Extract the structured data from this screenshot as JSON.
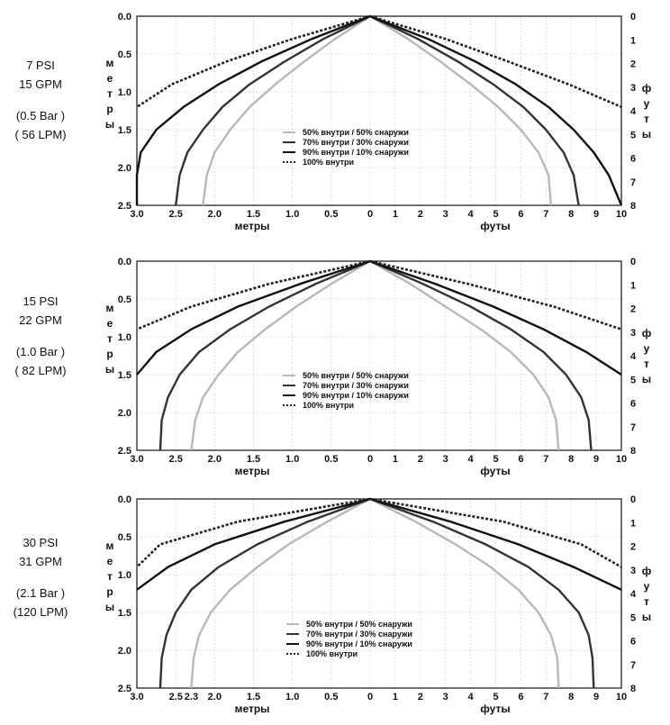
{
  "chart_data": [
    {
      "type": "line",
      "conditions": [
        "7 PSI",
        "15 GPM",
        "(0.5 Bar )",
        "( 56 LPM)"
      ],
      "x_left_label": "метры",
      "x_right_label": "футы",
      "y_left_label": "метры",
      "y_right_label": "футы",
      "x_left_ticks": [
        "3.0",
        "2.5",
        "2.0",
        "1.5",
        "1.0",
        "0.5",
        "0"
      ],
      "x_right_ticks": [
        "0",
        "1",
        "2",
        "3",
        "4",
        "5",
        "6",
        "7",
        "8",
        "9",
        "10"
      ],
      "y_left_ticks": [
        "0.0",
        "0.5",
        "1.0",
        "1.5",
        "2.0",
        "2.5"
      ],
      "y_right_ticks": [
        "0",
        "1",
        "2",
        "3",
        "4",
        "5",
        "6",
        "7",
        "8"
      ],
      "ylim": [
        0,
        2.5
      ],
      "grid": true,
      "legend_position": "center-bottom",
      "series": [
        {
          "name": "50% внутри / 50% снаружи",
          "color": "#b8b8b8",
          "style": "solid",
          "left_spread_m": [
            0,
            0.45,
            0.85,
            1.22,
            1.55,
            1.8,
            2.0,
            2.1,
            2.15
          ],
          "right_spread_ft": [
            0,
            1.5,
            2.8,
            4.0,
            5.1,
            6.0,
            6.7,
            7.1,
            7.2
          ]
        },
        {
          "name": "70% внутри / 30% снаружи",
          "color": "#333333",
          "style": "solid",
          "left_spread_m": [
            0,
            0.6,
            1.1,
            1.55,
            1.9,
            2.15,
            2.35,
            2.45,
            2.5
          ],
          "right_spread_ft": [
            0,
            1.9,
            3.5,
            4.9,
            6.1,
            7.0,
            7.7,
            8.1,
            8.3
          ]
        },
        {
          "name": "90% внутри / 10% снаружи",
          "color": "#111111",
          "style": "solid",
          "left_spread_m": [
            0,
            0.75,
            1.4,
            1.95,
            2.4,
            2.75,
            2.95,
            3.0,
            3.0
          ],
          "right_spread_ft": [
            0,
            2.3,
            4.2,
            5.8,
            7.1,
            8.1,
            8.9,
            9.5,
            10.0
          ]
        },
        {
          "name": "100% внутри",
          "color": "#222222",
          "style": "dotted",
          "left_spread_m": [
            0,
            1.0,
            1.85,
            2.55,
            3.0
          ],
          "right_spread_ft": [
            0,
            3.0,
            5.5,
            7.9,
            10.0
          ]
        }
      ],
      "depth_m": [
        0,
        0.3,
        0.6,
        0.9,
        1.2,
        1.5,
        1.8,
        2.1,
        2.5
      ]
    },
    {
      "type": "line",
      "conditions": [
        "15 PSI",
        "22 GPM",
        "(1.0 Bar )",
        "( 82 LPM)"
      ],
      "x_left_label": "метры",
      "x_right_label": "футы",
      "y_left_label": "метры",
      "y_right_label": "футы",
      "x_left_ticks": [
        "3.0",
        "2.5",
        "2.0",
        "1.5",
        "1.0",
        "0.5",
        "0"
      ],
      "x_right_ticks": [
        "0",
        "1",
        "2",
        "3",
        "4",
        "5",
        "6",
        "7",
        "8",
        "9",
        "10"
      ],
      "y_left_ticks": [
        "0.0",
        "0.5",
        "1.0",
        "1.5",
        "2.0",
        "2.5"
      ],
      "y_right_ticks": [
        "0",
        "1",
        "2",
        "3",
        "4",
        "5",
        "6",
        "7",
        "8"
      ],
      "ylim": [
        0,
        2.5
      ],
      "grid": true,
      "legend_position": "center-bottom",
      "series": [
        {
          "name": "50% внутри / 50% снаружи",
          "color": "#b8b8b8",
          "style": "solid",
          "left_spread_m": [
            0,
            0.5,
            0.95,
            1.35,
            1.7,
            1.95,
            2.15,
            2.25,
            2.3
          ],
          "right_spread_ft": [
            0,
            1.6,
            3.0,
            4.4,
            5.6,
            6.5,
            7.1,
            7.4,
            7.5
          ]
        },
        {
          "name": "70% внутри / 30% снаружи",
          "color": "#333333",
          "style": "solid",
          "left_spread_m": [
            0,
            0.7,
            1.3,
            1.8,
            2.2,
            2.45,
            2.6,
            2.68,
            2.7
          ],
          "right_spread_ft": [
            0,
            2.1,
            4.0,
            5.6,
            6.9,
            7.8,
            8.4,
            8.7,
            8.8
          ]
        },
        {
          "name": "90% внутри / 10% снаружи",
          "color": "#111111",
          "style": "solid",
          "left_spread_m": [
            0,
            0.9,
            1.7,
            2.3,
            2.75,
            3.0
          ],
          "right_spread_ft": [
            0,
            2.6,
            4.9,
            6.9,
            8.6,
            10.0
          ]
        },
        {
          "name": "100% внутри",
          "color": "#222222",
          "style": "dotted",
          "left_spread_m": [
            0,
            1.3,
            2.3,
            3.0
          ],
          "right_spread_ft": [
            0,
            3.9,
            7.3,
            10.0
          ]
        }
      ],
      "depth_m": [
        0,
        0.3,
        0.6,
        0.9,
        1.2,
        1.5,
        1.8,
        2.1,
        2.5
      ]
    },
    {
      "type": "line",
      "conditions": [
        "30 PSI",
        "31 GPM",
        "(2.1 Bar )",
        "(120 LPM)"
      ],
      "x_left_label": "метры",
      "x_right_label": "футы",
      "y_left_label": "метры",
      "y_right_label": "футы",
      "x_left_ticks": [
        "3.0",
        "2.5",
        "2.3",
        "2.0",
        "1.5",
        "1.0",
        "0.5",
        "0"
      ],
      "x_right_ticks": [
        "0",
        "1",
        "2",
        "3",
        "4",
        "5",
        "6",
        "7",
        "8",
        "9",
        "10"
      ],
      "y_left_ticks": [
        "0.0",
        "0.5",
        "1.0",
        "1.5",
        "2.0",
        "2.5"
      ],
      "y_right_ticks": [
        "0",
        "1",
        "2",
        "3",
        "4",
        "5",
        "6",
        "7",
        "8"
      ],
      "ylim": [
        0,
        2.5
      ],
      "grid": true,
      "legend_position": "bottom-right",
      "series": [
        {
          "name": "50% внутри / 50% снаружи",
          "color": "#b8b8b8",
          "style": "solid",
          "left_spread_m": [
            0,
            0.55,
            1.05,
            1.45,
            1.8,
            2.05,
            2.2,
            2.27,
            2.3
          ],
          "right_spread_ft": [
            0,
            1.8,
            3.4,
            4.8,
            5.9,
            6.7,
            7.2,
            7.45,
            7.5
          ]
        },
        {
          "name": "70% внутри / 30% снаружи",
          "color": "#333333",
          "style": "solid",
          "left_spread_m": [
            0,
            0.8,
            1.45,
            1.95,
            2.3,
            2.5,
            2.62,
            2.68,
            2.7
          ],
          "right_spread_ft": [
            0,
            2.5,
            4.6,
            6.3,
            7.5,
            8.3,
            8.7,
            8.85,
            8.9
          ]
        },
        {
          "name": "90% внутри / 10% снаружи",
          "color": "#111111",
          "style": "solid",
          "left_spread_m": [
            0,
            1.1,
            2.0,
            2.6,
            3.0
          ],
          "right_spread_ft": [
            0,
            3.2,
            5.9,
            8.1,
            10.0
          ]
        },
        {
          "name": "100% внутри",
          "color": "#222222",
          "style": "dotted",
          "left_spread_m": [
            0,
            1.7,
            2.7,
            3.0
          ],
          "right_spread_ft": [
            0,
            5.3,
            8.4,
            10.0
          ]
        }
      ],
      "depth_m": [
        0,
        0.3,
        0.6,
        0.9,
        1.2,
        1.5,
        1.8,
        2.1,
        2.5
      ]
    }
  ]
}
